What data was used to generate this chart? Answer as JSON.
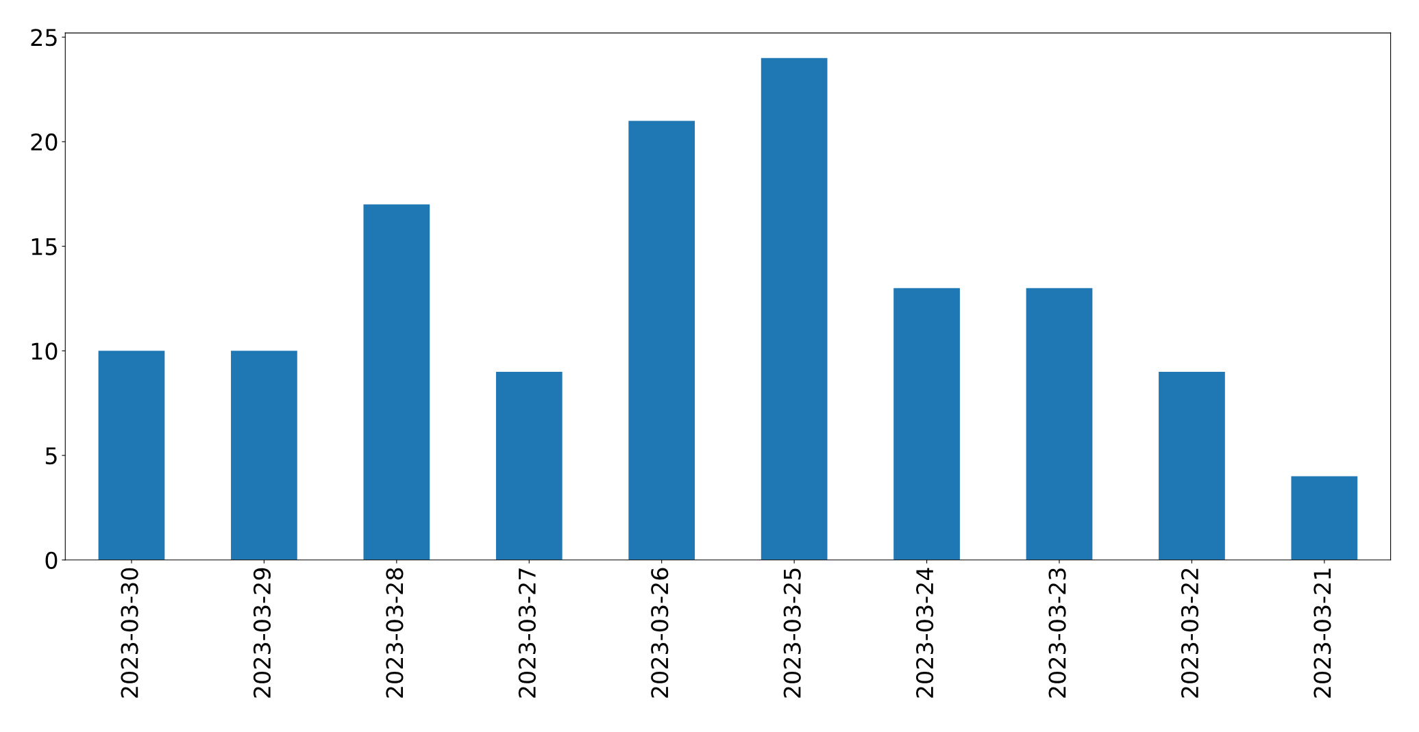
{
  "chart_data": {
    "type": "bar",
    "categories": [
      "2023-03-30",
      "2023-03-29",
      "2023-03-28",
      "2023-03-27",
      "2023-03-26",
      "2023-03-25",
      "2023-03-24",
      "2023-03-23",
      "2023-03-22",
      "2023-03-21"
    ],
    "values": [
      10,
      10,
      17,
      9,
      21,
      24,
      13,
      13,
      9,
      4
    ],
    "color": "#1f77b4",
    "ylim": [
      0,
      25.2
    ],
    "yticks": [
      0,
      5,
      10,
      15,
      20,
      25
    ],
    "grid": false,
    "legend": false
  }
}
